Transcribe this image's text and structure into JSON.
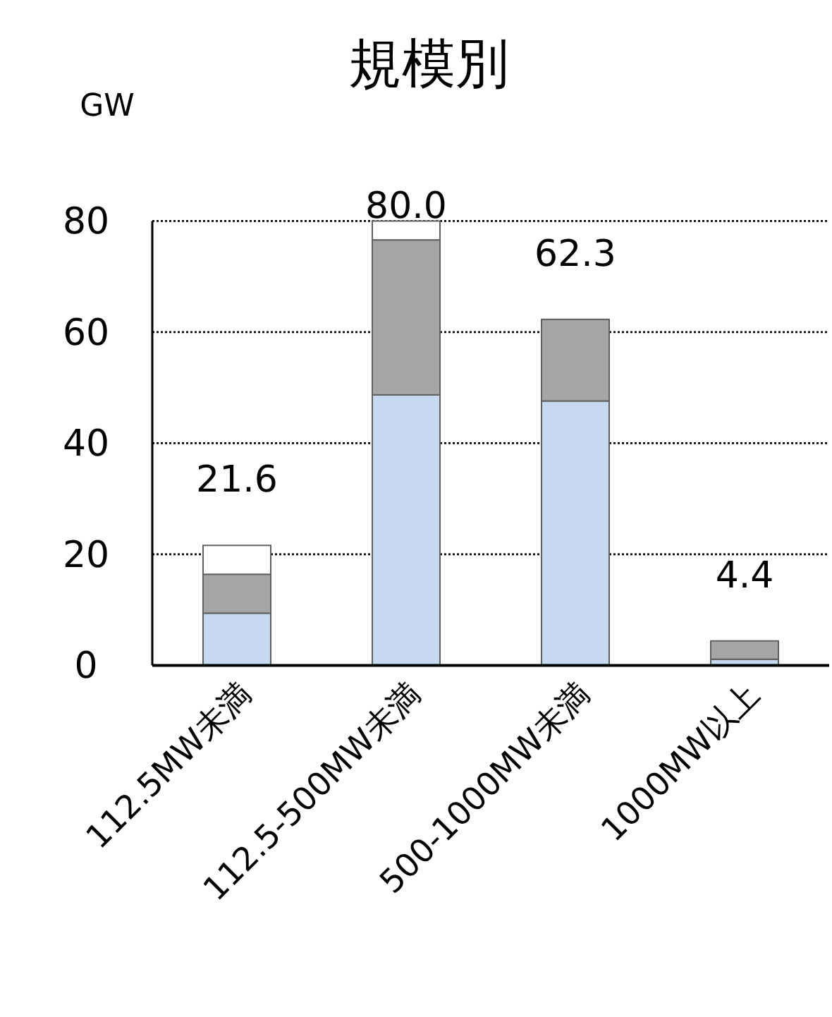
{
  "chart_data": {
    "type": "bar",
    "title": "規模別",
    "ylabel": "GW",
    "categories": [
      "112.5MW未満",
      "112.5-500MW未満",
      "500-1000MW未満",
      "1000MW以上"
    ],
    "stacked": true,
    "series": [
      {
        "color": "#c6d9f0",
        "values": [
          9.4,
          48.7,
          47.6,
          1.1
        ]
      },
      {
        "color": "#a6a6a6",
        "values": [
          7.0,
          27.9,
          14.7,
          3.3
        ]
      },
      {
        "color": "#ffffff",
        "values": [
          5.2,
          3.4,
          null,
          null
        ]
      }
    ],
    "totals": [
      "21.6",
      "80.0",
      "62.3",
      "4.4"
    ],
    "ylim": [
      0,
      80
    ],
    "yticks": [
      0,
      20,
      40,
      60,
      80
    ],
    "grid": "y"
  }
}
